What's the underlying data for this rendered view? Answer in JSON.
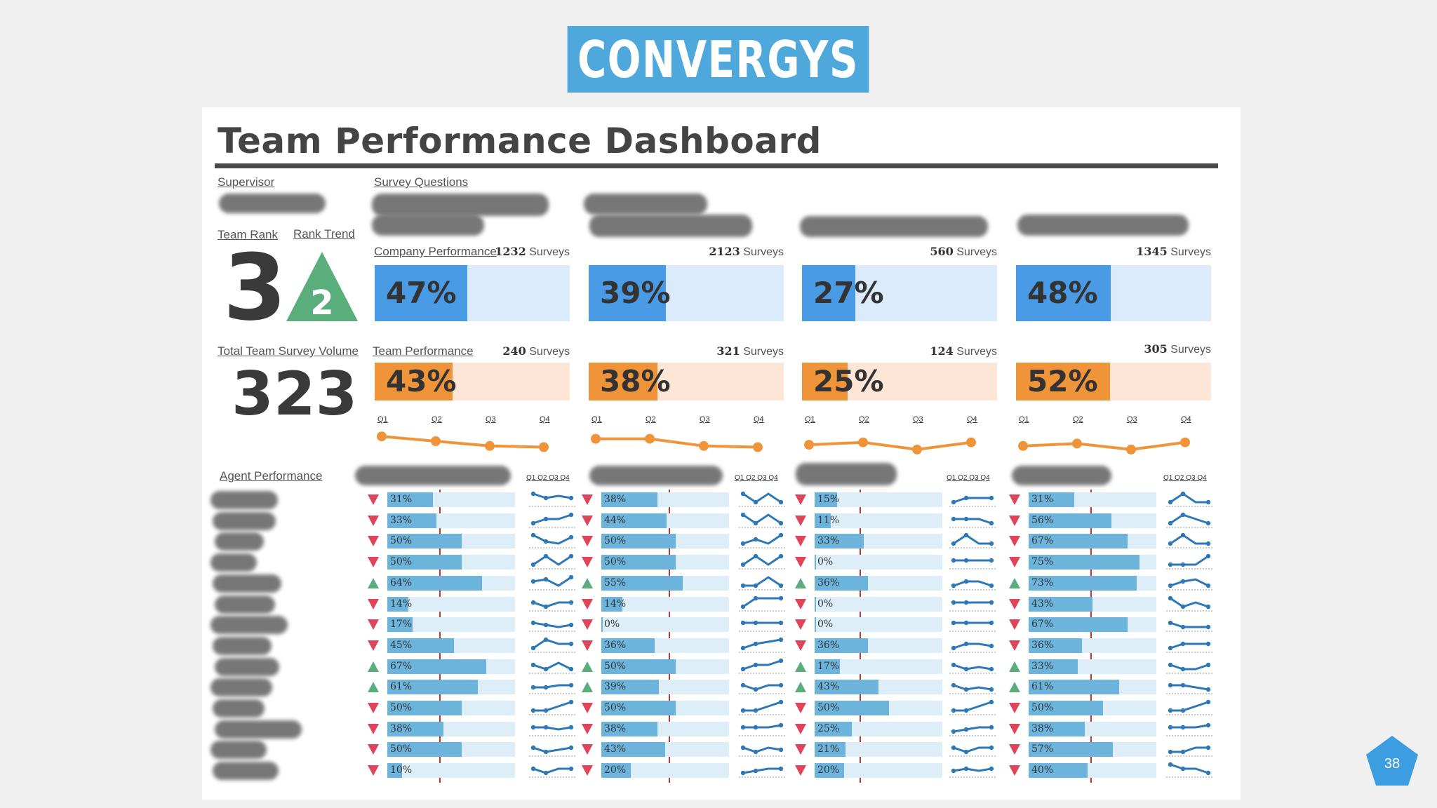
{
  "brand": "CONVERGYS",
  "title": "Team Performance Dashboard",
  "labels": {
    "supervisor": "Supervisor",
    "survey_questions": "Survey Questions",
    "team_rank": "Team Rank",
    "rank_trend": "Rank Trend",
    "company_performance": "Company Performance",
    "total_volume": "Total Team Survey Volume",
    "team_performance": "Team Performance",
    "agent_performance": "Agent Performance",
    "quarters": [
      "Q1",
      "Q2",
      "Q3",
      "Q4"
    ],
    "spark_header": "Q1 Q2 Q3 Q4"
  },
  "team_rank": "3",
  "rank_trend": "2",
  "total_volume": "323",
  "colors": {
    "brand": "#4ea8dc",
    "company": "#4a9be6",
    "company_bg": "#dcebfb",
    "team": "#f0943a",
    "team_bg": "#fde6d6",
    "agent_bar": "#6cb4dc",
    "spark": "#2e78b7",
    "down": "#e0445a",
    "up": "#5aae7c"
  },
  "questions": [
    {
      "company": {
        "surveys": "1232",
        "value": 47
      },
      "team": {
        "surveys": "240",
        "value": 43
      },
      "trend": [
        43,
        45,
        47,
        47.5
      ],
      "agents": [
        {
          "dir": "down",
          "value": 31,
          "spark": [
            3,
            2,
            2.5,
            2
          ]
        },
        {
          "dir": "down",
          "value": 33,
          "spark": [
            1,
            2,
            2,
            3
          ]
        },
        {
          "dir": "down",
          "value": 50,
          "spark": [
            3,
            1.5,
            1,
            2.5
          ]
        },
        {
          "dir": "down",
          "value": 50,
          "spark": [
            1,
            3,
            1,
            3
          ]
        },
        {
          "dir": "up",
          "value": 64,
          "spark": [
            2,
            2.5,
            1,
            3
          ]
        },
        {
          "dir": "down",
          "value": 14,
          "spark": [
            2,
            1,
            2,
            2
          ]
        },
        {
          "dir": "down",
          "value": 17,
          "spark": [
            2,
            1.5,
            1,
            1.5
          ]
        },
        {
          "dir": "down",
          "value": 45,
          "spark": [
            1,
            3,
            2,
            2
          ]
        },
        {
          "dir": "up",
          "value": 67,
          "spark": [
            2,
            1,
            2.5,
            1
          ]
        },
        {
          "dir": "up",
          "value": 61,
          "spark": [
            1.5,
            1.5,
            2,
            2
          ]
        },
        {
          "dir": "down",
          "value": 50,
          "spark": [
            1,
            1,
            2,
            3
          ]
        },
        {
          "dir": "down",
          "value": 38,
          "spark": [
            2,
            2,
            1.5,
            2
          ]
        },
        {
          "dir": "down",
          "value": 50,
          "spark": [
            2,
            1,
            1.5,
            2
          ]
        },
        {
          "dir": "down",
          "value": 10,
          "spark": [
            2,
            1,
            2,
            2
          ]
        }
      ]
    },
    {
      "company": {
        "surveys": "2123",
        "value": 39
      },
      "team": {
        "surveys": "321",
        "value": 38
      },
      "trend": [
        44,
        44,
        47,
        47.5
      ],
      "agents": [
        {
          "dir": "down",
          "value": 38,
          "spark": [
            3,
            1,
            3,
            1
          ]
        },
        {
          "dir": "down",
          "value": 44,
          "spark": [
            3,
            1,
            3,
            1
          ]
        },
        {
          "dir": "down",
          "value": 50,
          "spark": [
            1,
            2,
            1,
            3
          ]
        },
        {
          "dir": "down",
          "value": 50,
          "spark": [
            1,
            3,
            1,
            3
          ]
        },
        {
          "dir": "up",
          "value": 55,
          "spark": [
            1,
            1,
            3,
            1
          ]
        },
        {
          "dir": "down",
          "value": 14,
          "spark": [
            1,
            3,
            3,
            3
          ]
        },
        {
          "dir": "down",
          "value": 0,
          "spark": [
            2,
            2,
            2,
            2
          ]
        },
        {
          "dir": "down",
          "value": 36,
          "spark": [
            1,
            2,
            2.5,
            3
          ]
        },
        {
          "dir": "up",
          "value": 50,
          "spark": [
            1,
            2,
            2,
            3
          ]
        },
        {
          "dir": "up",
          "value": 39,
          "spark": [
            2,
            1,
            2,
            2
          ]
        },
        {
          "dir": "down",
          "value": 50,
          "spark": [
            1,
            1,
            2,
            3
          ]
        },
        {
          "dir": "down",
          "value": 38,
          "spark": [
            2,
            2,
            2,
            2.5
          ]
        },
        {
          "dir": "down",
          "value": 43,
          "spark": [
            2,
            1,
            2,
            1.5
          ]
        },
        {
          "dir": "down",
          "value": 20,
          "spark": [
            1,
            1.5,
            2,
            2
          ]
        }
      ]
    },
    {
      "company": {
        "surveys": "560",
        "value": 27
      },
      "team": {
        "surveys": "124",
        "value": 25
      },
      "trend": [
        46.5,
        45.5,
        48.5,
        45.5
      ],
      "agents": [
        {
          "dir": "down",
          "value": 15,
          "spark": [
            1,
            2,
            2,
            2
          ]
        },
        {
          "dir": "down",
          "value": 11,
          "spark": [
            2,
            2,
            2,
            1
          ]
        },
        {
          "dir": "down",
          "value": 33,
          "spark": [
            1,
            3,
            1,
            1
          ]
        },
        {
          "dir": "down",
          "value": 0,
          "spark": [
            2,
            2,
            2,
            2
          ]
        },
        {
          "dir": "up",
          "value": 36,
          "spark": [
            1,
            2,
            2,
            1
          ]
        },
        {
          "dir": "down",
          "value": 0,
          "spark": [
            2,
            2,
            2,
            2
          ]
        },
        {
          "dir": "down",
          "value": 0,
          "spark": [
            2,
            2,
            2,
            2
          ]
        },
        {
          "dir": "down",
          "value": 36,
          "spark": [
            1,
            2,
            2,
            1.5
          ]
        },
        {
          "dir": "up",
          "value": 17,
          "spark": [
            2,
            1,
            1.5,
            1
          ]
        },
        {
          "dir": "up",
          "value": 43,
          "spark": [
            2,
            1,
            1.5,
            1
          ]
        },
        {
          "dir": "down",
          "value": 50,
          "spark": [
            1,
            1,
            2,
            3
          ]
        },
        {
          "dir": "down",
          "value": 25,
          "spark": [
            1,
            1.5,
            2,
            2
          ]
        },
        {
          "dir": "down",
          "value": 21,
          "spark": [
            2,
            1,
            2,
            2
          ]
        },
        {
          "dir": "down",
          "value": 20,
          "spark": [
            1.5,
            2,
            1.5,
            2
          ]
        }
      ]
    },
    {
      "company": {
        "surveys": "1345",
        "value": 48
      },
      "team": {
        "surveys": "305",
        "value": 52
      },
      "trend": [
        47,
        46,
        48.5,
        45.5
      ],
      "agents": [
        {
          "dir": "down",
          "value": 31,
          "spark": [
            1,
            3,
            1,
            1
          ]
        },
        {
          "dir": "down",
          "value": 56,
          "spark": [
            1,
            3,
            2,
            1
          ]
        },
        {
          "dir": "down",
          "value": 67,
          "spark": [
            1,
            3,
            1,
            1
          ]
        },
        {
          "dir": "down",
          "value": 75,
          "spark": [
            1,
            1,
            1,
            3
          ]
        },
        {
          "dir": "up",
          "value": 73,
          "spark": [
            1,
            2,
            2.5,
            1
          ]
        },
        {
          "dir": "down",
          "value": 43,
          "spark": [
            3,
            1,
            2,
            1
          ]
        },
        {
          "dir": "down",
          "value": 67,
          "spark": [
            2,
            1,
            1,
            1
          ]
        },
        {
          "dir": "down",
          "value": 36,
          "spark": [
            1,
            2,
            2,
            2
          ]
        },
        {
          "dir": "up",
          "value": 33,
          "spark": [
            2,
            1,
            1,
            2
          ]
        },
        {
          "dir": "up",
          "value": 61,
          "spark": [
            2,
            2,
            1.5,
            1
          ]
        },
        {
          "dir": "down",
          "value": 50,
          "spark": [
            1,
            1,
            2,
            3
          ]
        },
        {
          "dir": "down",
          "value": 38,
          "spark": [
            2,
            2,
            2,
            2.5
          ]
        },
        {
          "dir": "down",
          "value": 57,
          "spark": [
            1,
            1,
            2,
            2
          ]
        },
        {
          "dir": "down",
          "value": 40,
          "spark": [
            3,
            2,
            2,
            1
          ]
        }
      ]
    }
  ],
  "page_number": "38"
}
